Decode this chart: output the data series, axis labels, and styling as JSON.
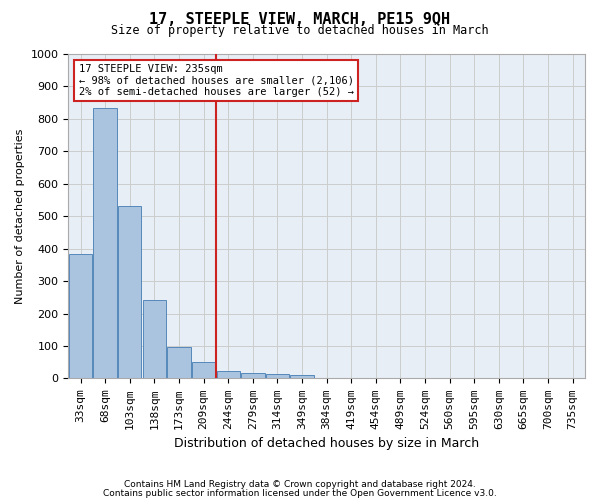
{
  "title": "17, STEEPLE VIEW, MARCH, PE15 9QH",
  "subtitle": "Size of property relative to detached houses in March",
  "xlabel": "Distribution of detached houses by size in March",
  "ylabel": "Number of detached properties",
  "bar_values": [
    385,
    835,
    530,
    242,
    97,
    52,
    22,
    17,
    15,
    10,
    0,
    0,
    0,
    0,
    0,
    0,
    0,
    0,
    0,
    0,
    0
  ],
  "bar_labels": [
    "33sqm",
    "68sqm",
    "103sqm",
    "138sqm",
    "173sqm",
    "209sqm",
    "244sqm",
    "279sqm",
    "314sqm",
    "349sqm",
    "384sqm",
    "419sqm",
    "454sqm",
    "489sqm",
    "524sqm",
    "560sqm",
    "595sqm",
    "630sqm",
    "665sqm",
    "700sqm",
    "735sqm"
  ],
  "bar_color": "#aac4e0",
  "bar_edge_color": "#5588bb",
  "vline_color": "#cc2222",
  "annotation_lines": [
    "17 STEEPLE VIEW: 235sqm",
    "← 98% of detached houses are smaller (2,106)",
    "2% of semi-detached houses are larger (52) →"
  ],
  "ylim": [
    0,
    1000
  ],
  "yticks": [
    0,
    100,
    200,
    300,
    400,
    500,
    600,
    700,
    800,
    900,
    1000
  ],
  "grid_color": "#cccccc",
  "bg_color": "#e8eef5",
  "footer_line1": "Contains HM Land Registry data © Crown copyright and database right 2024.",
  "footer_line2": "Contains public sector information licensed under the Open Government Licence v3.0."
}
